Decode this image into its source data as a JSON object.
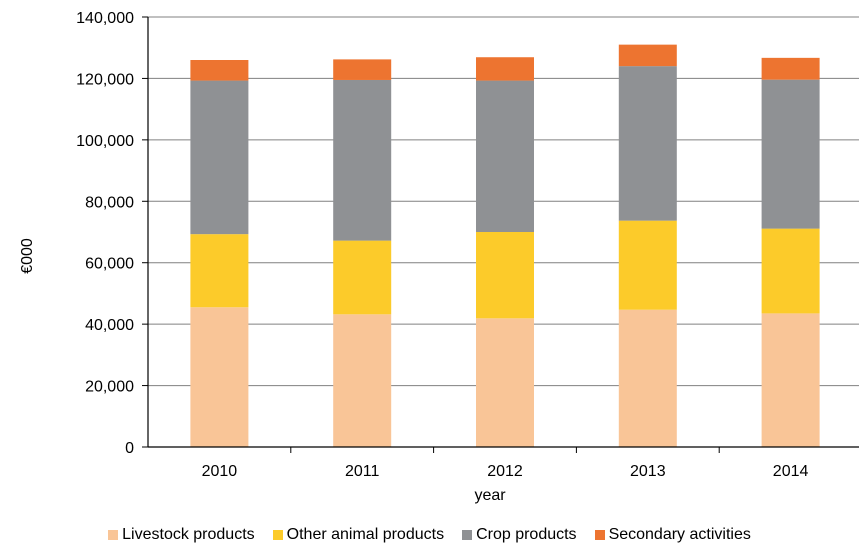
{
  "chart_data": {
    "type": "bar",
    "stacked": true,
    "categories": [
      "2010",
      "2011",
      "2012",
      "2013",
      "2014"
    ],
    "series": [
      {
        "name": "Livestock products",
        "color": "#F9C597",
        "values": [
          45500,
          43200,
          41900,
          44700,
          43500
        ]
      },
      {
        "name": "Other animal products",
        "color": "#FCCB2A",
        "values": [
          23800,
          24000,
          28100,
          29000,
          27600
        ]
      },
      {
        "name": "Crop products",
        "color": "#8F9194",
        "values": [
          50000,
          52300,
          49300,
          50300,
          48500
        ]
      },
      {
        "name": "Secondary activities",
        "color": "#ED7430",
        "values": [
          6700,
          6700,
          7600,
          7000,
          7100
        ]
      }
    ],
    "title": "",
    "xlabel": "year",
    "ylabel": "€000",
    "ylim": [
      0,
      140000
    ],
    "yticks": [
      "0",
      "20,000",
      "40,000",
      "60,000",
      "80,000",
      "100,000",
      "120,000",
      "140,000"
    ],
    "grid": true,
    "legend_position": "bottom"
  }
}
